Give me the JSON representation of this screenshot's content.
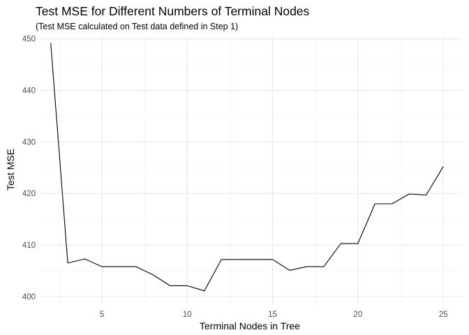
{
  "chart_data": {
    "type": "line",
    "title": "Test MSE for Different Numbers of Terminal Nodes",
    "subtitle": "(Test MSE calculated on Test data defined in Step 1)",
    "xlabel": "Terminal Nodes in Tree",
    "ylabel": "Test MSE",
    "xlim": [
      1.4,
      26.1
    ],
    "ylim": [
      398.5,
      450.5
    ],
    "xticks": [
      5,
      10,
      15,
      20,
      25
    ],
    "yticks": [
      400,
      410,
      420,
      430,
      440,
      450
    ],
    "grid": true,
    "legend": "none",
    "line_color": "#000000",
    "series": [
      {
        "x": [
          2,
          3,
          4,
          5,
          6,
          7,
          8,
          9,
          10,
          11,
          12,
          13,
          14,
          15,
          16,
          17,
          18,
          19,
          20,
          21,
          22,
          23,
          24,
          25
        ],
        "values": [
          449.2,
          406.5,
          407.3,
          405.8,
          405.8,
          405.8,
          404.2,
          402.1,
          402.1,
          401.1,
          407.2,
          407.2,
          407.2,
          407.2,
          405.1,
          405.8,
          405.8,
          410.3,
          410.3,
          418.0,
          418.0,
          419.9,
          419.7,
          425.2
        ]
      }
    ]
  }
}
